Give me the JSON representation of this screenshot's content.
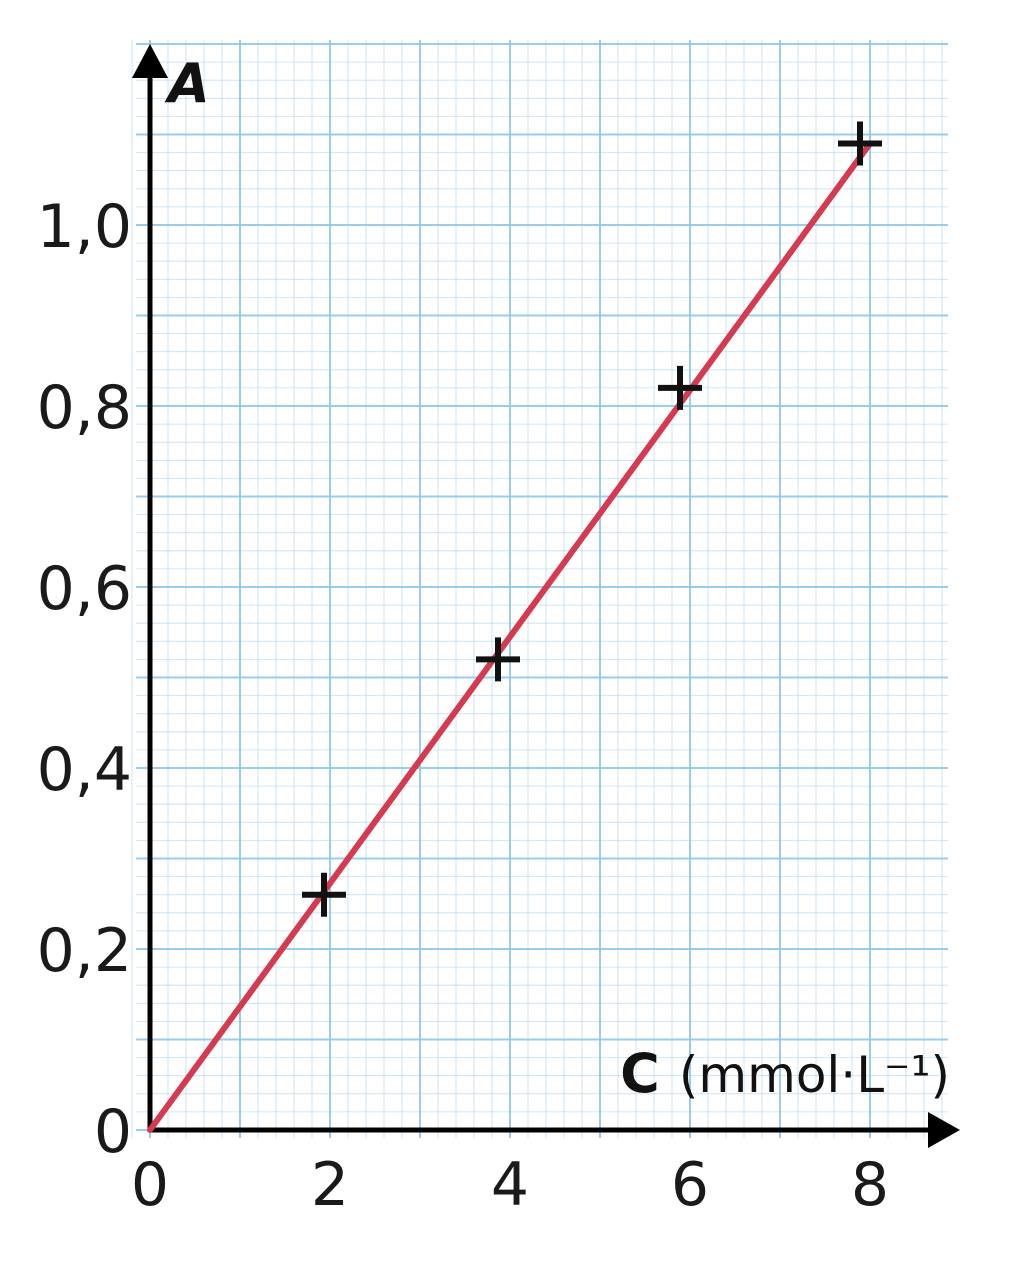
{
  "chart_data": {
    "type": "scatter",
    "title": "",
    "xlabel": "C",
    "xlabel_unit": "(mmol·L⁻¹)",
    "ylabel": "A",
    "xlim": [
      0,
      8
    ],
    "ylim": [
      0,
      1.0
    ],
    "x_ticks": [
      "0",
      "2",
      "4",
      "6",
      "8"
    ],
    "y_ticks": [
      "0",
      "0,2",
      "0,4",
      "0,6",
      "0,8",
      "1,0"
    ],
    "grid": true,
    "grid_color": "#8ec6ec",
    "fit_line_color": "#d63a4f",
    "series": [
      {
        "marker": "plus",
        "x": [
          2,
          4,
          6,
          8
        ],
        "y": [
          0.26,
          0.52,
          0.82,
          1.09
        ]
      }
    ],
    "fit_line": {
      "x": [
        0,
        8
      ],
      "y": [
        0,
        1.09
      ]
    }
  }
}
